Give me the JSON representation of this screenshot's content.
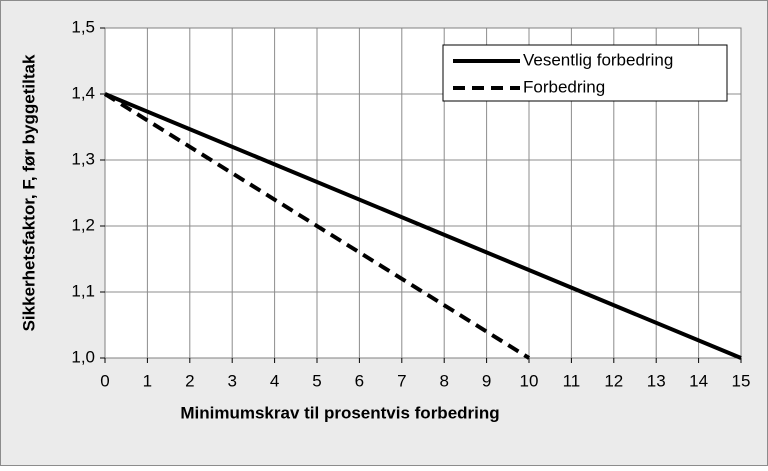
{
  "chart_data": {
    "type": "line",
    "xlabel": "Minimumskrav til prosentvis forbedring",
    "ylabel": "Sikkerhetsfaktor, F, før byggetiltak",
    "xlim": [
      0,
      15
    ],
    "xticks": [
      0,
      1,
      2,
      3,
      4,
      5,
      6,
      7,
      8,
      9,
      10,
      11,
      12,
      13,
      14,
      15
    ],
    "ylim": [
      1.0,
      1.5
    ],
    "yticks": [
      {
        "value": 1.0,
        "label": "1,0"
      },
      {
        "value": 1.1,
        "label": "1,1"
      },
      {
        "value": 1.2,
        "label": "1,2"
      },
      {
        "value": 1.3,
        "label": "1,3"
      },
      {
        "value": 1.4,
        "label": "1,4"
      },
      {
        "value": 1.5,
        "label": "1,5"
      }
    ],
    "grid": true,
    "legend": "upper right",
    "series": [
      {
        "name": "Vesentlig forbedring",
        "color": "#000000",
        "style": "solid",
        "x": [
          0,
          15
        ],
        "values": [
          1.4,
          1.0
        ]
      },
      {
        "name": "Forbedring",
        "color": "#000000",
        "style": "dashed",
        "x": [
          0,
          10
        ],
        "values": [
          1.4,
          1.0
        ]
      }
    ]
  }
}
